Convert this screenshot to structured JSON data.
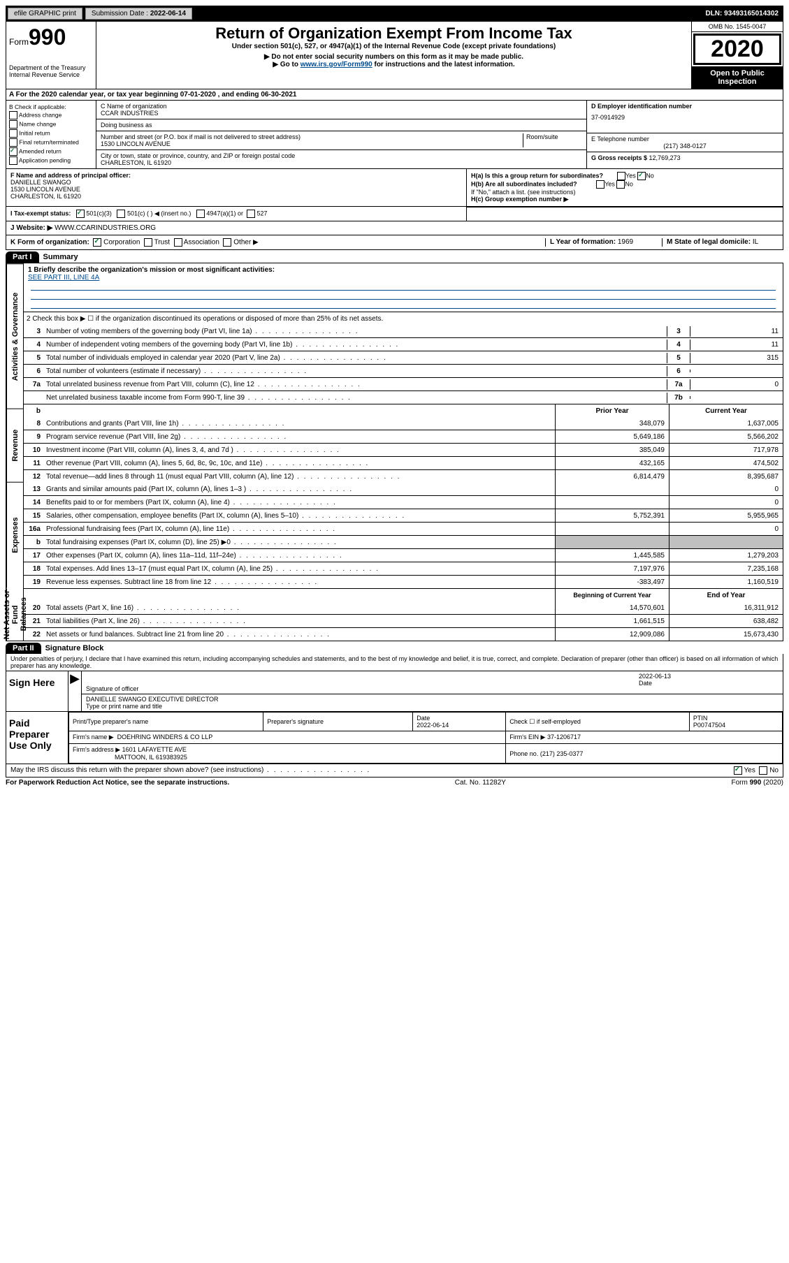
{
  "topbar": {
    "efile": "efile GRAPHIC print",
    "submission_label": "Submission Date : ",
    "submission_date": "2022-06-14",
    "dln": "DLN: 93493165014302"
  },
  "header": {
    "form_label": "Form",
    "form_number": "990",
    "dept": "Department of the Treasury",
    "irs": "Internal Revenue Service",
    "title": "Return of Organization Exempt From Income Tax",
    "subtitle": "Under section 501(c), 527, or 4947(a)(1) of the Internal Revenue Code (except private foundations)",
    "note1": "▶ Do not enter social security numbers on this form as it may be made public.",
    "note2_pre": "▶ Go to ",
    "note2_link": "www.irs.gov/Form990",
    "note2_post": " for instructions and the latest information.",
    "omb": "OMB No. 1545-0047",
    "year": "2020",
    "open": "Open to Public Inspection"
  },
  "rowA": "A For the 2020 calendar year, or tax year beginning 07-01-2020   , and ending 06-30-2021",
  "sectionB": {
    "label": "B Check if applicable:",
    "opts": [
      "Address change",
      "Name change",
      "Initial return",
      "Final return/terminated",
      "Amended return",
      "Application pending"
    ],
    "checked_idx": 4
  },
  "sectionC": {
    "name_label": "C Name of organization",
    "name": "CCAR INDUSTRIES",
    "dba_label": "Doing business as",
    "addr_label": "Number and street (or P.O. box if mail is not delivered to street address)",
    "room_label": "Room/suite",
    "addr": "1530 LINCOLN AVENUE",
    "city_label": "City or town, state or province, country, and ZIP or foreign postal code",
    "city": "CHARLESTON, IL  61920"
  },
  "sectionD": {
    "label": "D Employer identification number",
    "value": "37-0914929"
  },
  "sectionE": {
    "label": "E Telephone number",
    "value": "(217) 348-0127"
  },
  "sectionG": {
    "label": "G Gross receipts $ ",
    "value": "12,769,273"
  },
  "sectionF": {
    "label": "F Name and address of principal officer:",
    "name": "DANIELLE SWANGO",
    "addr1": "1530 LINCOLN AVENUE",
    "addr2": "CHARLESTON, IL  61920"
  },
  "sectionH": {
    "ha": "H(a)  Is this a group return for subordinates?",
    "hb": "H(b)  Are all subordinates included?",
    "hb_note": "If \"No,\" attach a list. (see instructions)",
    "hc": "H(c)  Group exemption number ▶"
  },
  "rowI": {
    "label": "I   Tax-exempt status:",
    "opts": [
      "501(c)(3)",
      "501(c) (  ) ◀ (insert no.)",
      "4947(a)(1) or",
      "527"
    ]
  },
  "rowJ": {
    "label": "J   Website: ▶ ",
    "value": "WWW.CCARINDUSTRIES.ORG"
  },
  "rowK": {
    "label": "K Form of organization:",
    "opts": [
      "Corporation",
      "Trust",
      "Association",
      "Other ▶"
    ]
  },
  "rowL": {
    "label": "L Year of formation: ",
    "value": "1969"
  },
  "rowM": {
    "label": "M State of legal domicile: ",
    "value": "IL"
  },
  "part1": {
    "tab": "Part I",
    "title": "Summary",
    "side_labels": [
      "Activities & Governance",
      "Revenue",
      "Expenses",
      "Net Assets or Fund Balances"
    ],
    "mission_label": "1  Briefly describe the organization's mission or most significant activities:",
    "mission": "SEE PART III, LINE 4A",
    "line2": "2   Check this box ▶ ☐ if the organization discontinued its operations or disposed of more than 25% of its net assets.",
    "governance_lines": [
      {
        "n": "3",
        "desc": "Number of voting members of the governing body (Part VI, line 1a)",
        "box": "3",
        "val": "11"
      },
      {
        "n": "4",
        "desc": "Number of independent voting members of the governing body (Part VI, line 1b)",
        "box": "4",
        "val": "11"
      },
      {
        "n": "5",
        "desc": "Total number of individuals employed in calendar year 2020 (Part V, line 2a)",
        "box": "5",
        "val": "315"
      },
      {
        "n": "6",
        "desc": "Total number of volunteers (estimate if necessary)",
        "box": "6",
        "val": ""
      },
      {
        "n": "7a",
        "desc": "Total unrelated business revenue from Part VIII, column (C), line 12",
        "box": "7a",
        "val": "0"
      },
      {
        "n": "",
        "desc": "Net unrelated business taxable income from Form 990-T, line 39",
        "box": "7b",
        "val": ""
      }
    ],
    "col_headers": {
      "prior": "Prior Year",
      "current": "Current Year"
    },
    "revenue_lines": [
      {
        "n": "8",
        "desc": "Contributions and grants (Part VIII, line 1h)",
        "prior": "348,079",
        "current": "1,637,005"
      },
      {
        "n": "9",
        "desc": "Program service revenue (Part VIII, line 2g)",
        "prior": "5,649,186",
        "current": "5,566,202"
      },
      {
        "n": "10",
        "desc": "Investment income (Part VIII, column (A), lines 3, 4, and 7d )",
        "prior": "385,049",
        "current": "717,978"
      },
      {
        "n": "11",
        "desc": "Other revenue (Part VIII, column (A), lines 5, 6d, 8c, 9c, 10c, and 11e)",
        "prior": "432,165",
        "current": "474,502"
      },
      {
        "n": "12",
        "desc": "Total revenue—add lines 8 through 11 (must equal Part VIII, column (A), line 12)",
        "prior": "6,814,479",
        "current": "8,395,687"
      }
    ],
    "expense_lines": [
      {
        "n": "13",
        "desc": "Grants and similar amounts paid (Part IX, column (A), lines 1–3 )",
        "prior": "",
        "current": "0"
      },
      {
        "n": "14",
        "desc": "Benefits paid to or for members (Part IX, column (A), line 4)",
        "prior": "",
        "current": "0"
      },
      {
        "n": "15",
        "desc": "Salaries, other compensation, employee benefits (Part IX, column (A), lines 5–10)",
        "prior": "5,752,391",
        "current": "5,955,965"
      },
      {
        "n": "16a",
        "desc": "Professional fundraising fees (Part IX, column (A), line 11e)",
        "prior": "",
        "current": "0"
      },
      {
        "n": "b",
        "desc": "Total fundraising expenses (Part IX, column (D), line 25) ▶0",
        "prior": "SHADED",
        "current": "SHADED"
      },
      {
        "n": "17",
        "desc": "Other expenses (Part IX, column (A), lines 11a–11d, 11f–24e)",
        "prior": "1,445,585",
        "current": "1,279,203"
      },
      {
        "n": "18",
        "desc": "Total expenses. Add lines 13–17 (must equal Part IX, column (A), line 25)",
        "prior": "7,197,976",
        "current": "7,235,168"
      },
      {
        "n": "19",
        "desc": "Revenue less expenses. Subtract line 18 from line 12",
        "prior": "-383,497",
        "current": "1,160,519"
      }
    ],
    "net_headers": {
      "beg": "Beginning of Current Year",
      "end": "End of Year"
    },
    "net_lines": [
      {
        "n": "20",
        "desc": "Total assets (Part X, line 16)",
        "prior": "14,570,601",
        "current": "16,311,912"
      },
      {
        "n": "21",
        "desc": "Total liabilities (Part X, line 26)",
        "prior": "1,661,515",
        "current": "638,482"
      },
      {
        "n": "22",
        "desc": "Net assets or fund balances. Subtract line 21 from line 20",
        "prior": "12,909,086",
        "current": "15,673,430"
      }
    ]
  },
  "part2": {
    "tab": "Part II",
    "title": "Signature Block",
    "perjury": "Under penalties of perjury, I declare that I have examined this return, including accompanying schedules and statements, and to the best of my knowledge and belief, it is true, correct, and complete. Declaration of preparer (other than officer) is based on all information of which preparer has any knowledge.",
    "sign_here": "Sign Here",
    "sig_officer": "Signature of officer",
    "date": "2022-06-13",
    "date_label": "Date",
    "officer_name": "DANIELLE SWANGO  EXECUTIVE DIRECTOR",
    "type_label": "Type or print name and title",
    "paid_prep": "Paid Preparer Use Only",
    "prep_name_label": "Print/Type preparer's name",
    "prep_sig_label": "Preparer's signature",
    "prep_date_label": "Date",
    "prep_date": "2022-06-14",
    "check_self": "Check ☐ if self-employed",
    "ptin_label": "PTIN",
    "ptin": "P00747504",
    "firm_name_label": "Firm's name     ▶",
    "firm_name": "DOEHRING WINDERS & CO LLP",
    "firm_ein_label": "Firm's EIN ▶",
    "firm_ein": "37-1206717",
    "firm_addr_label": "Firm's address ▶",
    "firm_addr": "1601 LAFAYETTE AVE",
    "firm_city": "MATTOON, IL  619383925",
    "phone_label": "Phone no. ",
    "phone": "(217) 235-0377",
    "discuss": "May the IRS discuss this return with the preparer shown above? (see instructions)",
    "yes": "Yes",
    "no": "No"
  },
  "footer": {
    "left": "For Paperwork Reduction Act Notice, see the separate instructions.",
    "center": "Cat. No. 11282Y",
    "right": "Form 990 (2020)"
  }
}
